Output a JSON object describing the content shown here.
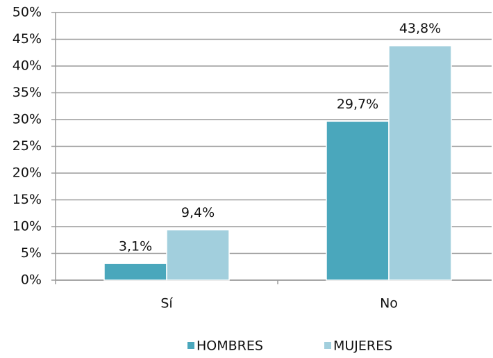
{
  "chart_data": {
    "type": "bar",
    "categories": [
      "Sí",
      "No"
    ],
    "series": [
      {
        "name": "HOMBRES",
        "color": "#4aa7bc",
        "values": [
          3.1,
          29.7
        ],
        "value_labels": [
          "3,1%",
          "29,7%"
        ]
      },
      {
        "name": "MUJERES",
        "color": "#a2cfdd",
        "values": [
          9.4,
          43.8
        ],
        "value_labels": [
          "9,4%",
          "43,8%"
        ]
      }
    ],
    "ylim": [
      0,
      50
    ],
    "yticks": [
      {
        "value": 0,
        "label": "0%"
      },
      {
        "value": 5,
        "label": "5%"
      },
      {
        "value": 10,
        "label": "10%"
      },
      {
        "value": 15,
        "label": "15%"
      },
      {
        "value": 20,
        "label": "20%"
      },
      {
        "value": 25,
        "label": "25%"
      },
      {
        "value": 30,
        "label": "30%"
      },
      {
        "value": 35,
        "label": "35%"
      },
      {
        "value": 40,
        "label": "40%"
      },
      {
        "value": 45,
        "label": "45%"
      },
      {
        "value": 50,
        "label": "50%"
      }
    ],
    "grid": true,
    "legend": "bottom"
  }
}
